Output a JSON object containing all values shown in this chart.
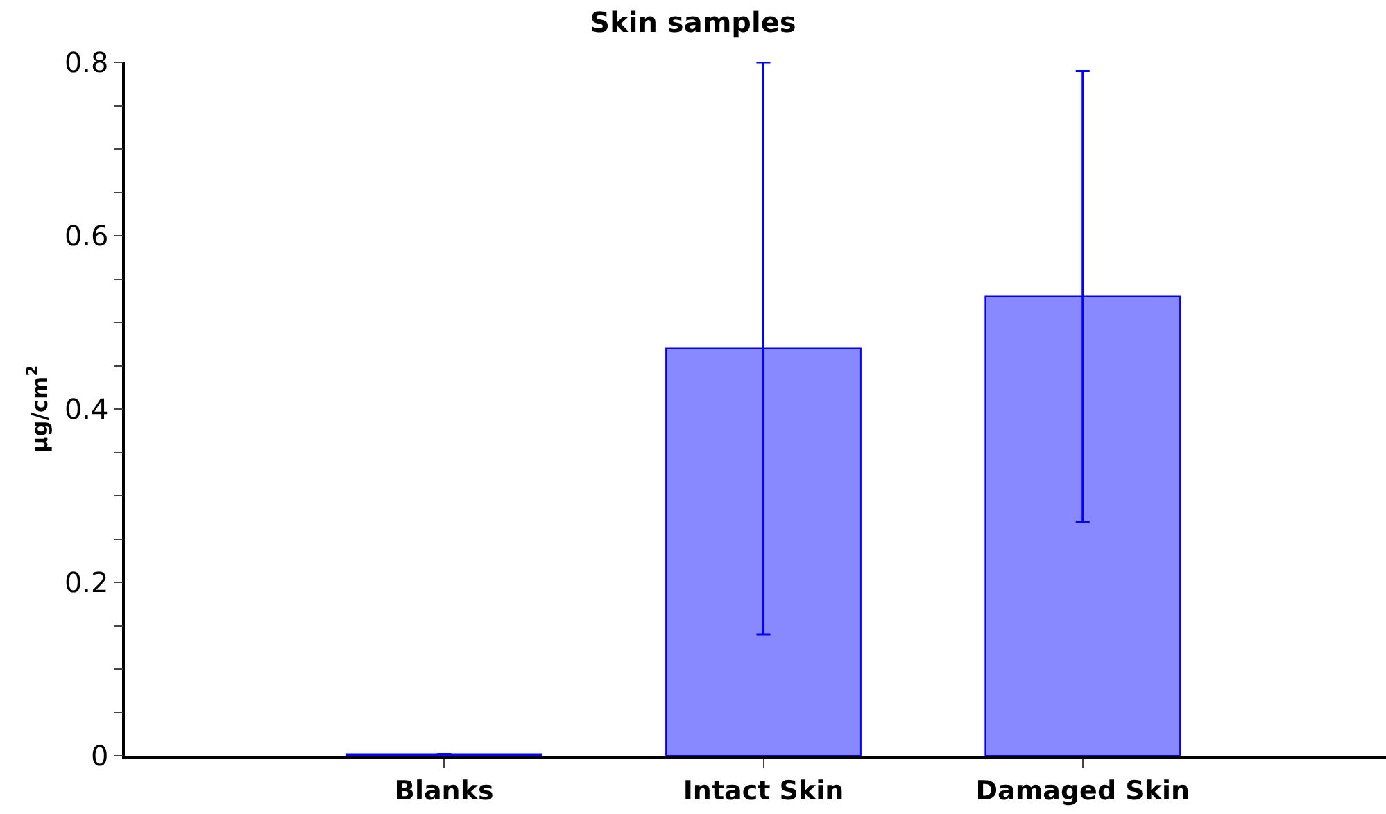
{
  "chart_data": {
    "type": "bar",
    "title": "Skin samples",
    "ylabel": "μg/cm$^{2}$",
    "categories": [
      "Blanks",
      "Intact Skin",
      "Damaged Skin"
    ],
    "values": [
      0.002,
      0.47,
      0.53
    ],
    "errors": [
      null,
      [
        0.14,
        0.8
      ],
      [
        0.27,
        0.79
      ]
    ],
    "colors": [
      "#0000ff",
      "#8888ff",
      "#8888ff"
    ],
    "ylim": [
      0,
      0.8
    ],
    "yticks": [
      0,
      {
        "value": 0.05,
        "label": null
      },
      {
        "value": 0.1,
        "label": null
      },
      {
        "value": 0.15,
        "label": null
      },
      0.2,
      {
        "value": 0.25,
        "label": null
      },
      {
        "value": 0.3,
        "label": null
      },
      {
        "value": 0.35,
        "label": null
      },
      0.4,
      {
        "value": 0.45,
        "label": null
      },
      {
        "value": 0.5,
        "label": null
      },
      {
        "value": 0.55,
        "label": null
      },
      0.6,
      {
        "value": 0.65,
        "label": null
      },
      {
        "value": 0.7,
        "label": null
      },
      {
        "value": 0.75,
        "label": null
      },
      0.8
    ]
  }
}
